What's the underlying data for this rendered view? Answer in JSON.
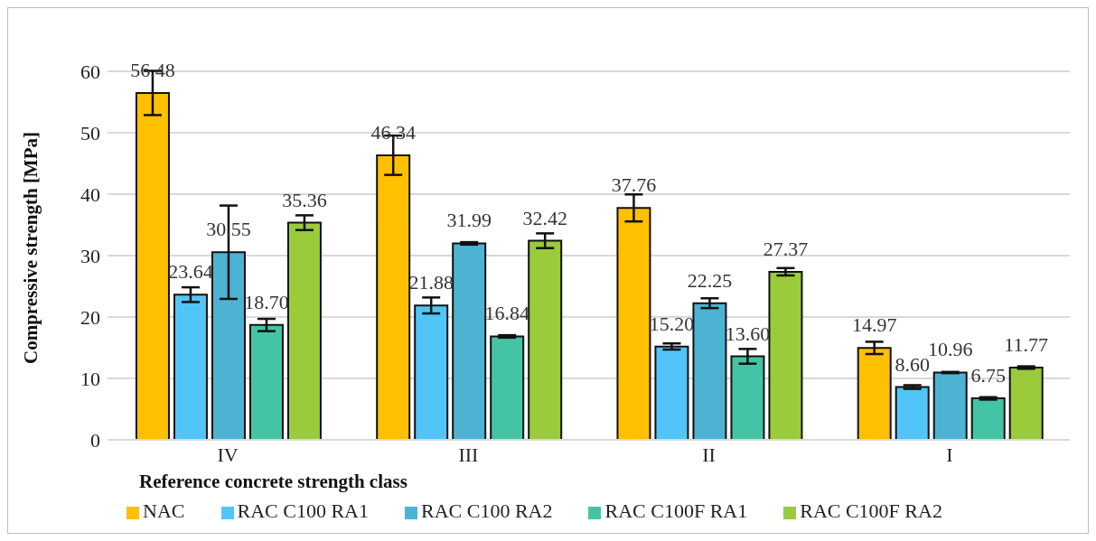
{
  "chart_data": {
    "type": "bar",
    "xlabel": "Reference concrete strength class",
    "ylabel": "Compressive strength [MPa]",
    "categories": [
      "IV",
      "III",
      "II",
      "I"
    ],
    "series": [
      {
        "name": "NAC",
        "color": "#ffc000",
        "values": [
          56.48,
          46.34,
          37.76,
          14.97
        ],
        "errors": [
          3.6,
          3.2,
          2.2,
          1.0
        ],
        "value_labels": [
          "56.48",
          "46.34",
          "37.76",
          "14.97"
        ]
      },
      {
        "name": "RAC C100 RA1",
        "color": "#52c5f8",
        "values": [
          23.64,
          21.88,
          15.2,
          8.6
        ],
        "errors": [
          1.2,
          1.3,
          0.5,
          0.3
        ],
        "value_labels": [
          "23.64",
          "21.88",
          "15.20",
          "8.60"
        ]
      },
      {
        "name": "RAC C100 RA2",
        "color": "#4db3d2",
        "values": [
          30.55,
          31.99,
          22.25,
          10.96
        ],
        "errors": [
          7.6,
          0.2,
          0.8,
          0.1
        ],
        "value_labels": [
          "30.55",
          "31.99",
          "22.25",
          "10.96"
        ]
      },
      {
        "name": "RAC C100F RA1",
        "color": "#45c4a5",
        "values": [
          18.7,
          16.84,
          13.6,
          6.75
        ],
        "errors": [
          1.0,
          0.2,
          1.2,
          0.2
        ],
        "value_labels": [
          "18.70",
          "16.84",
          "13.60",
          "6.75"
        ]
      },
      {
        "name": "RAC C100F RA2",
        "color": "#9acb3a",
        "values": [
          35.36,
          32.42,
          27.37,
          11.77
        ],
        "errors": [
          1.2,
          1.2,
          0.6,
          0.2
        ],
        "value_labels": [
          "35.36",
          "32.42",
          "27.37",
          "11.77"
        ]
      }
    ],
    "ylim": [
      0,
      60
    ],
    "yticks": [
      0,
      10,
      20,
      30,
      40,
      50,
      60
    ],
    "grid": "y",
    "legend": "bottom"
  }
}
